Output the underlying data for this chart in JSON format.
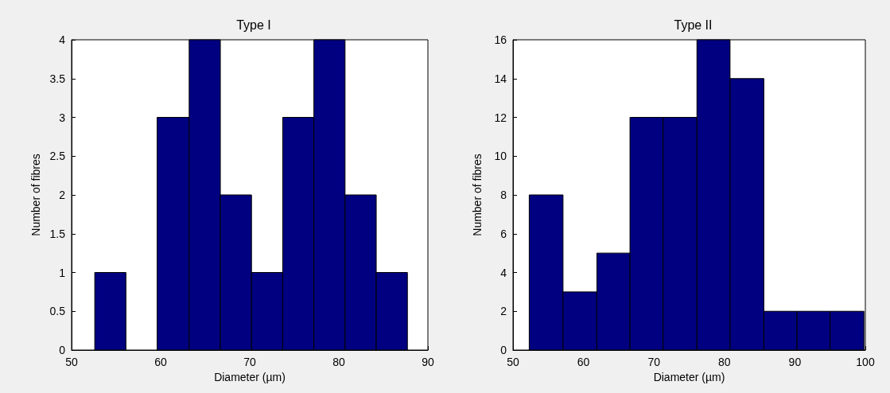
{
  "chart_data": [
    {
      "type": "histogram",
      "title": "Type I",
      "xlabel": "Diameter (µm)",
      "ylabel": "Number of fibres",
      "color": "#000080",
      "bins": [
        52.6,
        56.1,
        59.6,
        63.2,
        66.7,
        70.2,
        73.7,
        77.2,
        80.7,
        84.2,
        87.7
      ],
      "values": [
        1,
        0,
        3,
        4,
        2,
        1,
        3,
        4,
        2,
        1
      ],
      "xlim": [
        50,
        90
      ],
      "xticks": [
        50,
        60,
        70,
        80,
        90
      ],
      "ylim": [
        0,
        4
      ],
      "yticks": [
        0,
        0.5,
        1,
        1.5,
        2,
        2.5,
        3,
        3.5,
        4
      ],
      "grid": false
    },
    {
      "type": "histogram",
      "title": "Type II",
      "xlabel": "Diameter (µm)",
      "ylabel": "Number of fibres",
      "color": "#000080",
      "bins": [
        52.3,
        57.1,
        61.9,
        66.6,
        71.3,
        76.1,
        80.8,
        85.6,
        90.3,
        95.0,
        99.8
      ],
      "values": [
        8,
        3,
        5,
        12,
        12,
        16,
        14,
        2,
        2,
        2
      ],
      "xlim": [
        50,
        100
      ],
      "xticks": [
        50,
        60,
        70,
        80,
        90,
        100
      ],
      "ylim": [
        0,
        16
      ],
      "yticks": [
        0,
        2,
        4,
        6,
        8,
        10,
        12,
        14,
        16
      ],
      "grid": false
    }
  ]
}
